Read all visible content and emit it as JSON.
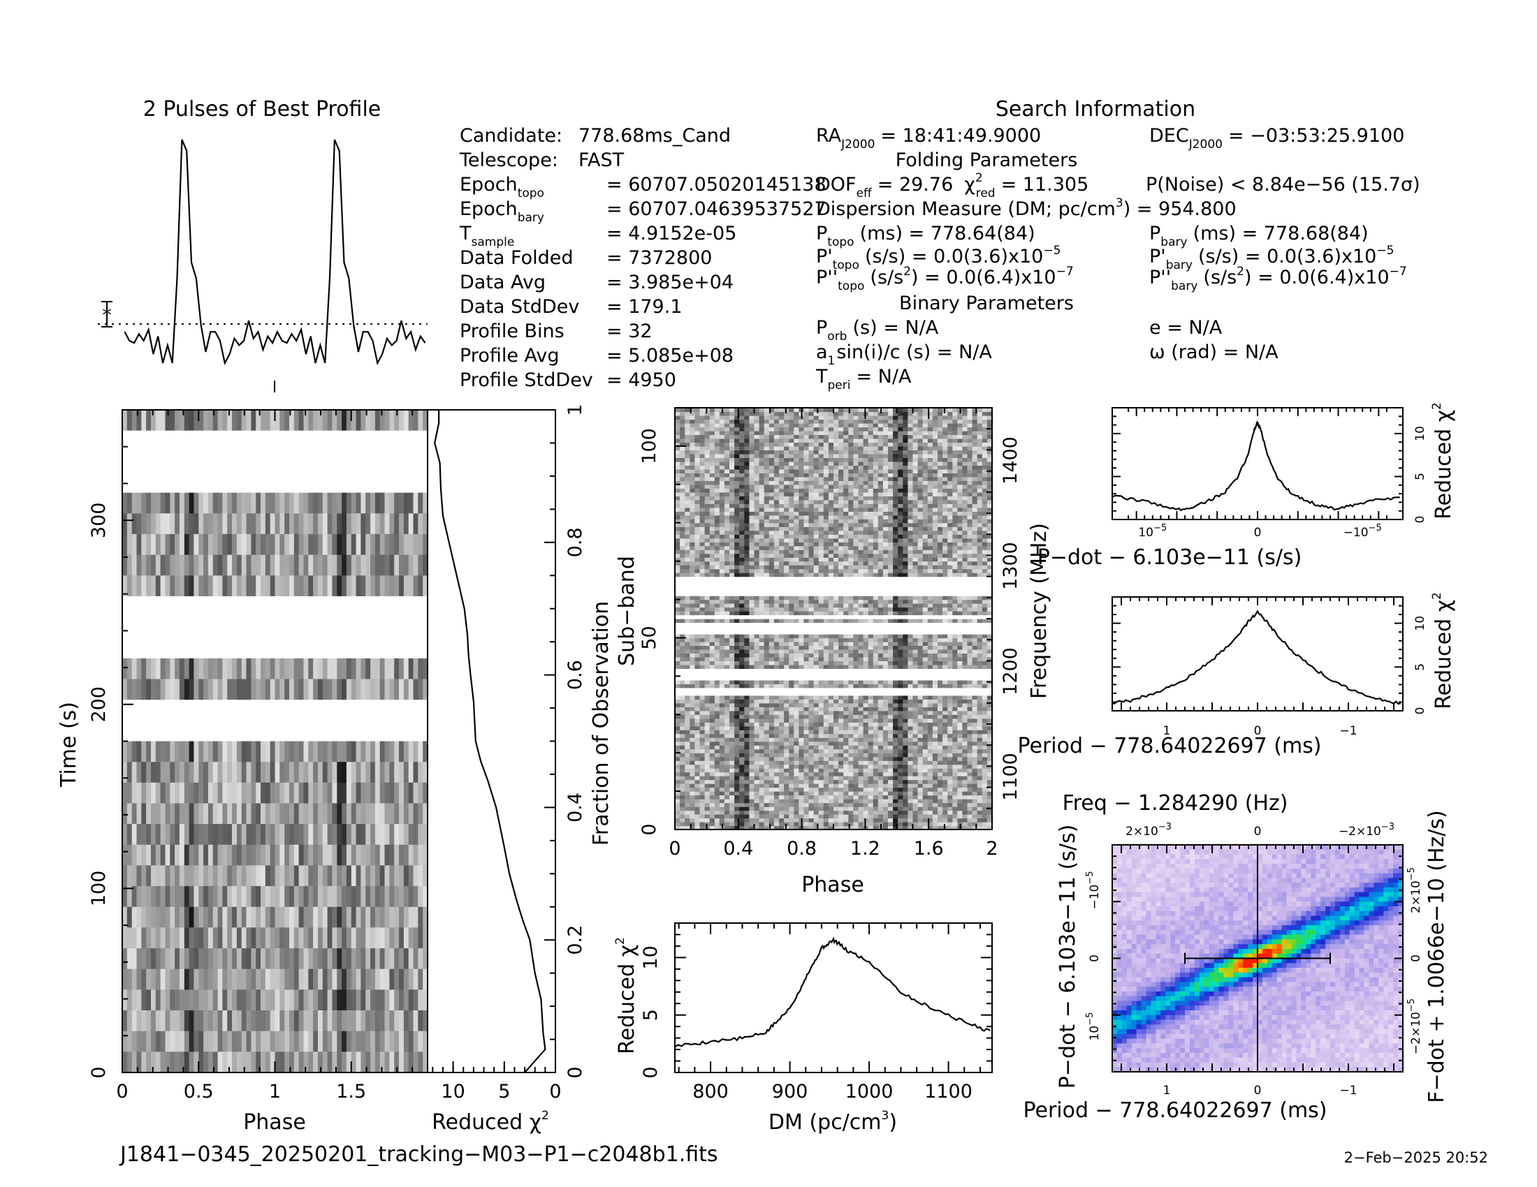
{
  "header": {
    "profile_title": "2 Pulses of Best Profile",
    "search_title": "Search Information",
    "folding_title": "Folding Parameters",
    "binary_title": "Binary Parameters"
  },
  "info_left": [
    {
      "label": "Candidate:",
      "value": "778.68ms_Cand"
    },
    {
      "label": "Telescope:",
      "value": "FAST"
    },
    {
      "label": "Epoch",
      "sub": "topo",
      "value": "= 60707.05020145138"
    },
    {
      "label": "Epoch",
      "sub": "bary",
      "value": "= 60707.04639537527"
    },
    {
      "label": "T",
      "sub": "sample",
      "value": "=  4.9152e-05"
    },
    {
      "label": "Data Folded",
      "value": "=  7372800"
    },
    {
      "label": "Data Avg",
      "value": "=  3.985e+04"
    },
    {
      "label": "Data StdDev",
      "value": "=  179.1"
    },
    {
      "label": "Profile Bins",
      "value": "=  32"
    },
    {
      "label": "Profile Avg",
      "value": "=  5.085e+08"
    },
    {
      "label": "Profile StdDev",
      "value": "=  4950"
    }
  ],
  "info_coords": {
    "ra_label": "RA",
    "ra_sub": "J2000",
    "ra_value": "= 18:41:49.9000",
    "dec_label": "DEC",
    "dec_sub": "J2000",
    "dec_value": "= −03:53:25.9100"
  },
  "folding": {
    "dof_label": "DOF",
    "dof_sub": "eff",
    "dof_value": "= 29.76",
    "chi_sym": "χ",
    "chi_sub": "red",
    "chi_sup": "2",
    "chi_value": "= 11.305",
    "pnoise": "P(Noise) < 8.84e−56   (15.7σ)",
    "dm_line": "Dispersion Measure (DM; pc/cm",
    "dm_sup": "3",
    "dm_value": ") = 954.800",
    "ptopo_label": "P",
    "ptopo_sub": "topo",
    "ptopo_value": "(ms) =  778.64(84)",
    "pbary_label": "P",
    "pbary_sub": "bary",
    "pbary_value": "(ms) =  778.68(84)",
    "pdtopo_label": "P'",
    "pdtopo_sub": "topo",
    "pdtopo_value": "(s/s) = 0.0(3.6)x10",
    "pdtopo_exp": "−5",
    "pdbary_label": "P'",
    "pdbary_sub": "bary",
    "pdbary_value": "(s/s) = 0.0(3.6)x10",
    "pdbary_exp": "−5",
    "pddtopo_label": "P''",
    "pddtopo_sub": "topo",
    "pddtopo_value": "(s/s",
    "pddtopo_sup": "2",
    "pddtopo_rest": ") = 0.0(6.4)x10",
    "pddtopo_exp": "−7",
    "pddbary_label": "P''",
    "pddbary_sub": "bary",
    "pddbary_value": "(s/s",
    "pddbary_sup": "2",
    "pddbary_rest": ") = 0.0(6.4)x10",
    "pddbary_exp": "−7"
  },
  "binary": {
    "porb_label": "P",
    "porb_sub": "orb",
    "porb_value": "(s) = N/A",
    "e_value": "e = N/A",
    "a1_label": "a",
    "a1_sub": "1",
    "a1_value": "sin(i)/c (s) = N/A",
    "omega_value": "ω (rad) = N/A",
    "tperi_label": "T",
    "tperi_sub": "peri",
    "tperi_value": "= N/A"
  },
  "footer": {
    "filename": "J1841−0345_20250201_tracking−M03−P1−c2048b1.fits",
    "date": "2−Feb−2025 20:52"
  },
  "chart_data": [
    {
      "type": "line",
      "name": "profile",
      "title": "2 Pulses of Best Profile",
      "x_range": [
        0,
        2
      ],
      "values": [
        0.14,
        0.1,
        0.09,
        0.13,
        0.1,
        0.15,
        0.04,
        0.12,
        0.0,
        0.08,
        0.0,
        0.38,
        1.0,
        0.95,
        0.45,
        0.38,
        0.17,
        0.05,
        0.14,
        0.14,
        0.1,
        0.0,
        0.04,
        0.11,
        0.08,
        0.1,
        0.19,
        0.11,
        0.14,
        0.06,
        0.12,
        0.09
      ],
      "mean_level": 0.156
    },
    {
      "type": "heatmap",
      "name": "time-phase",
      "xlabel": "Phase",
      "ylabel": "Time (s)",
      "x_ticks": [
        "0",
        "0.5",
        "1",
        "1.5"
      ],
      "y_ticks": [
        "0",
        "100",
        "200",
        "300"
      ],
      "y_range": [
        0,
        360
      ],
      "rows": 32,
      "blank_rows": [
        1,
        2,
        3,
        9,
        10,
        11,
        14,
        15
      ],
      "pulse_phase": [
        0.42,
        0.44
      ]
    },
    {
      "type": "line",
      "name": "time-chi2",
      "xlabel": "Reduced χ",
      "xlabel_sup": "2",
      "x_ticks": [
        "10",
        "5",
        "0"
      ],
      "x_range": [
        12.5,
        0
      ],
      "y2label": "Fraction of Observation",
      "y2_ticks": [
        "0",
        "0.2",
        "0.4",
        "0.6",
        "0.8",
        "1"
      ],
      "points": [
        [
          0,
          3.0
        ],
        [
          0.035,
          1.0
        ],
        [
          0.06,
          1.2
        ],
        [
          0.11,
          1.4
        ],
        [
          0.15,
          2.0
        ],
        [
          0.2,
          2.5
        ],
        [
          0.23,
          3.2
        ],
        [
          0.26,
          3.8
        ],
        [
          0.3,
          4.5
        ],
        [
          0.34,
          5.0
        ],
        [
          0.4,
          5.8
        ],
        [
          0.44,
          6.6
        ],
        [
          0.47,
          7.3
        ],
        [
          0.5,
          7.8
        ],
        [
          0.56,
          8.0
        ],
        [
          0.6,
          8.3
        ],
        [
          0.63,
          8.5
        ],
        [
          0.66,
          8.6
        ],
        [
          0.7,
          8.9
        ],
        [
          0.74,
          9.5
        ],
        [
          0.78,
          10.1
        ],
        [
          0.8,
          10.4
        ],
        [
          0.84,
          11.0
        ],
        [
          0.88,
          11.2
        ],
        [
          0.92,
          11.3
        ],
        [
          0.95,
          11.8
        ],
        [
          0.98,
          11.4
        ],
        [
          1.0,
          11.4
        ]
      ]
    },
    {
      "type": "heatmap",
      "name": "subband-phase",
      "xlabel": "Phase",
      "ylabel": "Sub−band",
      "y2label": "Frequency (MHz)",
      "x_ticks": [
        "0",
        "0.4",
        "0.8",
        "1.2",
        "1.6",
        "2"
      ],
      "y_ticks": [
        "0",
        "50",
        "100"
      ],
      "y2_ticks": [
        "1100",
        "1200",
        "1300",
        "1400"
      ],
      "x_range": [
        0,
        2
      ],
      "y_range": [
        0,
        110
      ],
      "pulse_phase": [
        0.42,
        1.42
      ]
    },
    {
      "type": "line",
      "name": "dm-chi2",
      "xlabel": "DM (pc/cm",
      "xlabel_sup": "3",
      "ylabel": "Reduced χ",
      "ylabel_sup": "2",
      "x_ticks": [
        "800",
        "900",
        "1000",
        "1100"
      ],
      "y_ticks": [
        "0",
        "5",
        "10"
      ],
      "x_range": [
        755,
        1155
      ],
      "y_range": [
        0,
        13
      ],
      "points": [
        [
          755,
          2.3
        ],
        [
          780,
          2.5
        ],
        [
          800,
          2.7
        ],
        [
          830,
          2.9
        ],
        [
          850,
          3.1
        ],
        [
          870,
          3.5
        ],
        [
          880,
          4.2
        ],
        [
          895,
          5.2
        ],
        [
          910,
          6.8
        ],
        [
          920,
          8.3
        ],
        [
          930,
          9.5
        ],
        [
          940,
          10.8
        ],
        [
          948,
          11.2
        ],
        [
          955,
          11.5
        ],
        [
          962,
          11.2
        ],
        [
          972,
          10.6
        ],
        [
          985,
          10.2
        ],
        [
          1000,
          9.6
        ],
        [
          1020,
          8.4
        ],
        [
          1040,
          7.0
        ],
        [
          1060,
          6.2
        ],
        [
          1080,
          5.6
        ],
        [
          1100,
          5.0
        ],
        [
          1120,
          4.4
        ],
        [
          1140,
          3.9
        ],
        [
          1155,
          3.5
        ]
      ]
    },
    {
      "type": "line",
      "name": "pdot-chi2",
      "xlabel": "P−dot − 6.103e−11 (s/s)",
      "ylabel": "Reduced χ",
      "ylabel_sup": "2",
      "x_ticks": [
        "10",
        "0",
        "−10"
      ],
      "x_tick_exp": [
        "−5",
        "",
        "−5"
      ],
      "y_ticks": [
        "0",
        "5",
        "10"
      ],
      "x_range": [
        1.8,
        -1.8
      ],
      "y_range": [
        0,
        13
      ],
      "points": [
        [
          1.8,
          2.7
        ],
        [
          1.5,
          2.3
        ],
        [
          1.2,
          1.7
        ],
        [
          1.0,
          1.1
        ],
        [
          0.8,
          1.5
        ],
        [
          0.6,
          2.2
        ],
        [
          0.4,
          3.2
        ],
        [
          0.25,
          4.8
        ],
        [
          0.12,
          7.5
        ],
        [
          0.04,
          10.5
        ],
        [
          0,
          11.3
        ],
        [
          -0.04,
          10.5
        ],
        [
          -0.12,
          7.5
        ],
        [
          -0.25,
          4.8
        ],
        [
          -0.4,
          3.2
        ],
        [
          -0.6,
          2.2
        ],
        [
          -0.8,
          1.5
        ],
        [
          -1.0,
          1.2
        ],
        [
          -1.2,
          1.7
        ],
        [
          -1.5,
          2.3
        ],
        [
          -1.8,
          2.5
        ]
      ]
    },
    {
      "type": "line",
      "name": "period-chi2",
      "xlabel": "Period − 778.64022697 (ms)",
      "ylabel": "Reduced χ",
      "ylabel_sup": "2",
      "x_ticks": [
        "1",
        "0",
        "−1"
      ],
      "y_ticks": [
        "0",
        "5",
        "10"
      ],
      "x_range": [
        1.6,
        -1.6
      ],
      "y_range": [
        0,
        13
      ],
      "points": [
        [
          1.6,
          0.9
        ],
        [
          1.4,
          1.1
        ],
        [
          1.2,
          1.8
        ],
        [
          1.0,
          2.6
        ],
        [
          0.8,
          3.6
        ],
        [
          0.6,
          5.0
        ],
        [
          0.4,
          6.7
        ],
        [
          0.2,
          8.8
        ],
        [
          0.1,
          10.2
        ],
        [
          0,
          11.3
        ],
        [
          -0.1,
          10.2
        ],
        [
          -0.2,
          8.8
        ],
        [
          -0.4,
          6.7
        ],
        [
          -0.6,
          5.0
        ],
        [
          -0.8,
          3.6
        ],
        [
          -1.0,
          2.6
        ],
        [
          -1.2,
          1.8
        ],
        [
          -1.4,
          1.1
        ],
        [
          -1.6,
          0.8
        ]
      ]
    },
    {
      "type": "heatmap",
      "name": "period-pdot",
      "title": "Freq − 1.284290 (Hz)",
      "xlabel": "Period − 778.64022697 (ms)",
      "ylabel": "P−dot − 6.103e−11 (s/s)",
      "y2label": "F−dot + 1.0066e−10 (Hz/s)",
      "x_ticks": [
        "1",
        "0",
        "−1"
      ],
      "y_ticks": [
        "−10",
        "0",
        "10"
      ],
      "y_tick_exp": [
        "−5",
        "",
        "−5"
      ],
      "top_ticks": [
        "−2×10",
        "0",
        "2×10"
      ],
      "top_tick_exp": [
        "−3",
        "",
        "−3"
      ],
      "right_ticks": [
        "2×10",
        "0",
        "−2×10"
      ],
      "right_tick_exp": [
        "−5",
        "",
        "−5"
      ],
      "x_range": [
        1.6,
        -1.6
      ],
      "y_range": [
        -2,
        2
      ]
    }
  ],
  "colors": {
    "ink": "#000000",
    "heat_low": "#e8d8f4",
    "heat_mid": "#2222c8",
    "heat_high": "#ff2000"
  }
}
